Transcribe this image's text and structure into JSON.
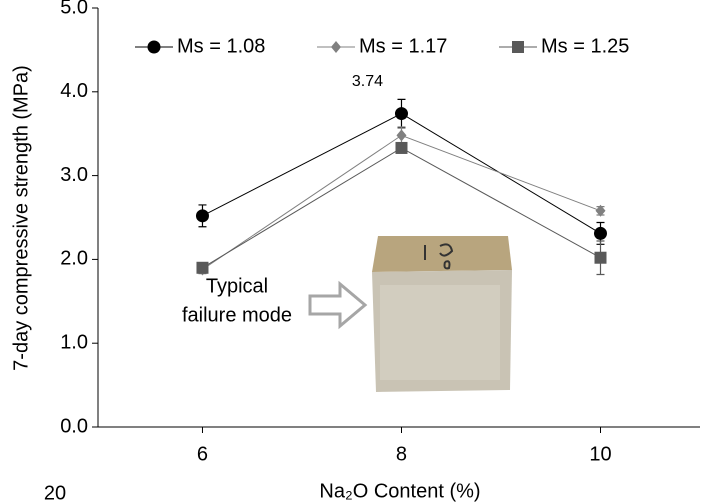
{
  "chart_data": {
    "type": "line",
    "xlabel": "Na₂O Content (%)",
    "ylabel": "7-day compressive strength (MPa)",
    "x": [
      6,
      8,
      10
    ],
    "series": [
      {
        "name": "Ms = 1.08",
        "color": "#000000",
        "marker": "circle",
        "values": [
          2.52,
          3.74,
          2.31
        ],
        "errors": [
          0.13,
          0.17,
          0.13
        ],
        "value_labels": [
          null,
          "3.74",
          null
        ]
      },
      {
        "name": "Ms = 1.17",
        "color": "#808080",
        "marker": "diamond",
        "values": [
          1.88,
          3.48,
          2.58
        ],
        "errors": [
          0.05,
          0.1,
          0.05
        ]
      },
      {
        "name": "Ms = 1.25",
        "color": "#595959",
        "marker": "square",
        "values": [
          1.9,
          3.33,
          2.02
        ],
        "errors": [
          0.05,
          0.06,
          0.2
        ]
      }
    ],
    "xlim": [
      4.95,
      11
    ],
    "ylim": [
      0,
      5
    ],
    "xticks": [
      6,
      8,
      10
    ],
    "yticks": [
      {
        "value": 0,
        "label": "0.0"
      },
      {
        "value": 1,
        "label": "1.0"
      },
      {
        "value": 2,
        "label": "2.0"
      },
      {
        "value": 3,
        "label": "3.0"
      },
      {
        "value": 4,
        "label": "4.0"
      },
      {
        "value": 5,
        "label": "5.0"
      }
    ],
    "legend": "top",
    "annotation": [
      "Typical",
      "failure mode"
    ],
    "stray_text": "20"
  }
}
